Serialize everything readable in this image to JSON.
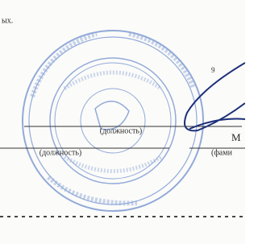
{
  "header": {
    "fragment": "ых."
  },
  "fields": [
    {
      "label": "(должность)"
    },
    {
      "label": "(должность)"
    },
    {
      "label": "(фами"
    }
  ],
  "side_letter": "М",
  "side_mark": "9"
}
